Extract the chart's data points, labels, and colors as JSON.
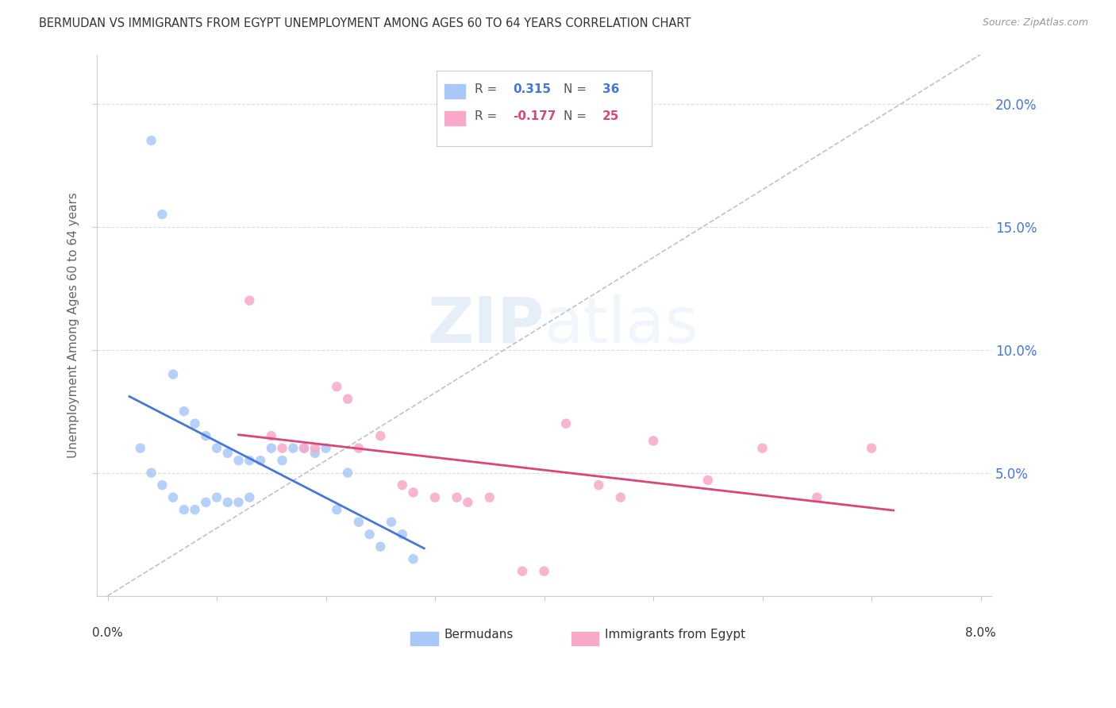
{
  "title": "BERMUDAN VS IMMIGRANTS FROM EGYPT UNEMPLOYMENT AMONG AGES 60 TO 64 YEARS CORRELATION CHART",
  "source": "Source: ZipAtlas.com",
  "ylabel": "Unemployment Among Ages 60 to 64 years",
  "watermark": "ZIPatlas",
  "legend_blue_r": "0.315",
  "legend_blue_n": "36",
  "legend_pink_r": "-0.177",
  "legend_pink_n": "25",
  "blue_color": "#A8C8F8",
  "pink_color": "#F8A8C8",
  "blue_line_color": "#4477DD",
  "pink_line_color": "#DD4477",
  "dashed_line_color": "#BBBBBB",
  "grid_color": "#DDDDDD",
  "title_color": "#333333",
  "right_axis_color": "#4477DD",
  "blue_scatter_x": [
    0.003,
    0.004,
    0.004,
    0.005,
    0.005,
    0.006,
    0.006,
    0.007,
    0.007,
    0.008,
    0.008,
    0.009,
    0.009,
    0.01,
    0.01,
    0.011,
    0.011,
    0.012,
    0.012,
    0.013,
    0.013,
    0.014,
    0.015,
    0.016,
    0.017,
    0.018,
    0.019,
    0.02,
    0.021,
    0.022,
    0.023,
    0.024,
    0.025,
    0.026,
    0.027,
    0.028
  ],
  "blue_scatter_y": [
    0.06,
    0.185,
    0.05,
    0.155,
    0.045,
    0.09,
    0.04,
    0.075,
    0.035,
    0.07,
    0.035,
    0.065,
    0.038,
    0.06,
    0.04,
    0.058,
    0.038,
    0.055,
    0.038,
    0.055,
    0.04,
    0.055,
    0.06,
    0.055,
    0.06,
    0.06,
    0.058,
    0.06,
    0.035,
    0.05,
    0.03,
    0.025,
    0.02,
    0.03,
    0.025,
    0.015
  ],
  "pink_scatter_x": [
    0.013,
    0.015,
    0.016,
    0.018,
    0.019,
    0.021,
    0.022,
    0.023,
    0.025,
    0.027,
    0.028,
    0.03,
    0.032,
    0.033,
    0.035,
    0.038,
    0.04,
    0.042,
    0.045,
    0.047,
    0.05,
    0.055,
    0.06,
    0.065,
    0.07
  ],
  "pink_scatter_y": [
    0.12,
    0.065,
    0.06,
    0.06,
    0.06,
    0.085,
    0.08,
    0.06,
    0.065,
    0.045,
    0.042,
    0.04,
    0.04,
    0.038,
    0.04,
    0.01,
    0.01,
    0.07,
    0.045,
    0.04,
    0.063,
    0.047,
    0.06,
    0.04,
    0.06
  ],
  "xmin": 0.0,
  "xmax": 0.08,
  "ymin": 0.0,
  "ymax": 0.22
}
